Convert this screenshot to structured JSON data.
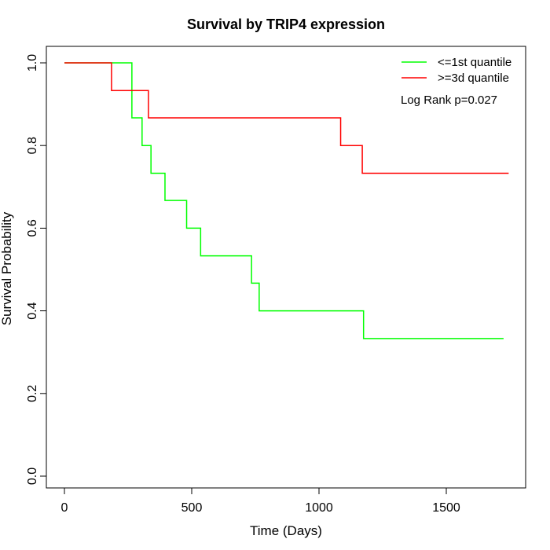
{
  "chart_data": {
    "type": "line",
    "subtype": "kaplan-meier-step",
    "title": "Survival by TRIP4 expression",
    "xlabel": "Time (Days)",
    "ylabel": "Survival Probability",
    "xlim": [
      0,
      1800
    ],
    "ylim": [
      0,
      1.0
    ],
    "xticks": [
      0,
      500,
      1000,
      1500
    ],
    "yticks": [
      0.0,
      0.2,
      0.4,
      0.6,
      0.8,
      1.0
    ],
    "xtick_labels": [
      "0",
      "500",
      "1000",
      "1500"
    ],
    "ytick_labels": [
      "0.0",
      "0.2",
      "0.4",
      "0.6",
      "0.8",
      "1.0"
    ],
    "grid": false,
    "legend_position": "top-right",
    "annotation": "Log Rank p=0.027",
    "series": [
      {
        "name": "<=1st quantile",
        "color": "#00ff00",
        "x": [
          0,
          255,
          265,
          305,
          340,
          395,
          480,
          535,
          735,
          765,
          1175,
          1725
        ],
        "y": [
          1.0,
          1.0,
          0.867,
          0.8,
          0.733,
          0.667,
          0.6,
          0.533,
          0.467,
          0.4,
          0.333,
          0.333
        ]
      },
      {
        "name": ">=3d quantile",
        "color": "#ff0000",
        "x": [
          0,
          185,
          330,
          1085,
          1170,
          1745
        ],
        "y": [
          1.0,
          0.933,
          0.867,
          0.8,
          0.733,
          0.733
        ]
      }
    ]
  }
}
